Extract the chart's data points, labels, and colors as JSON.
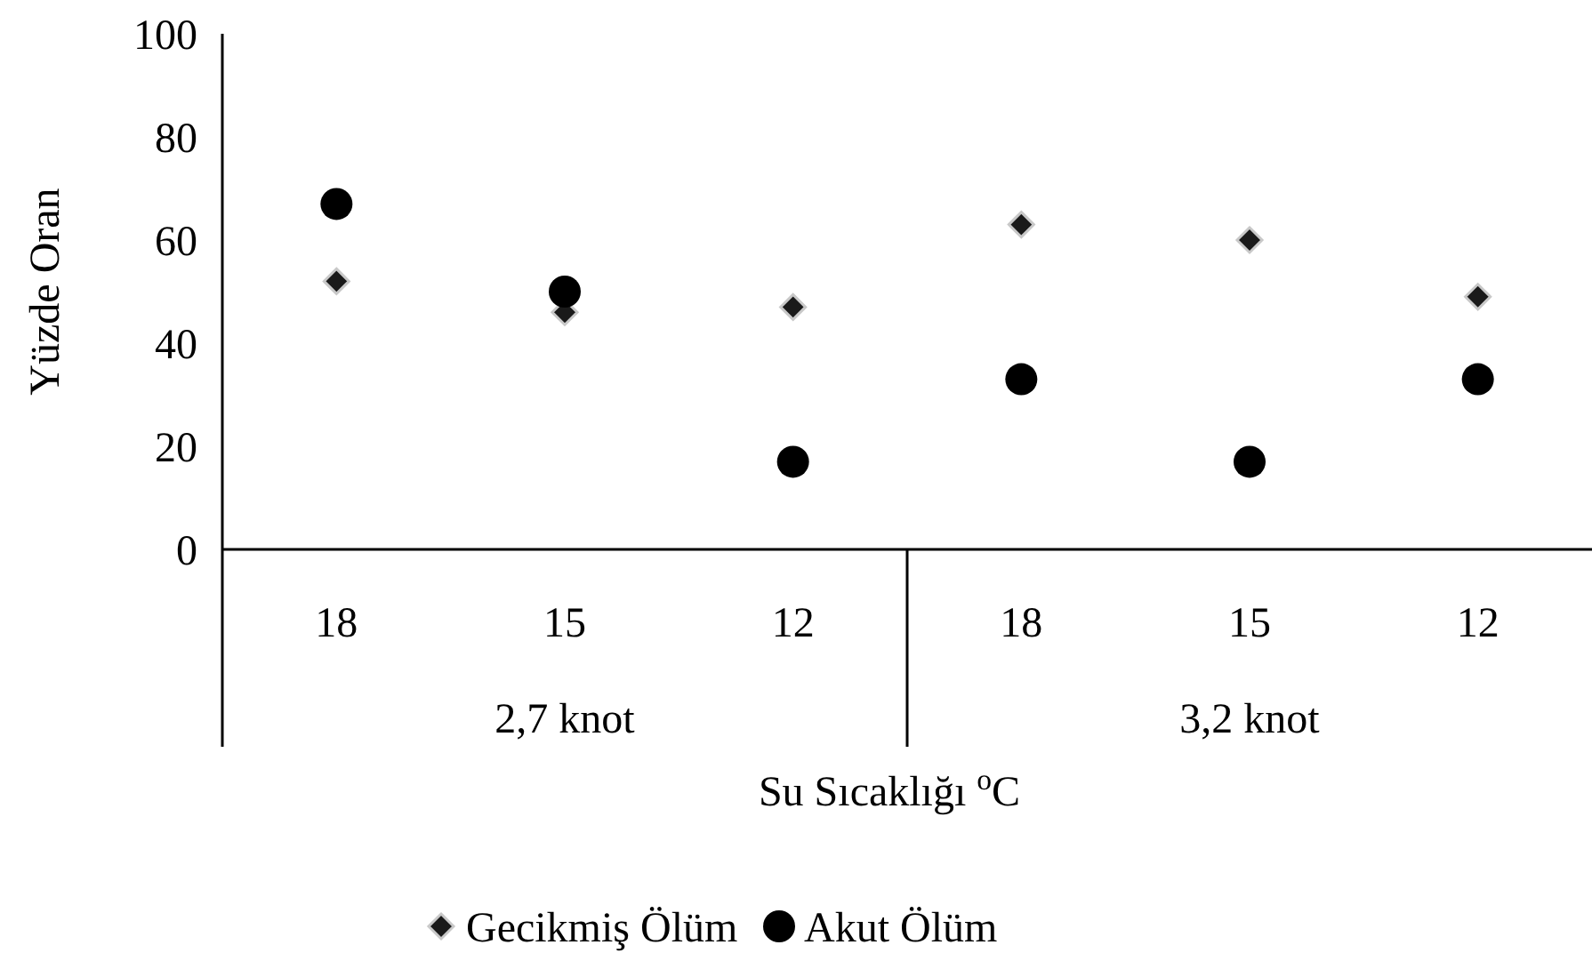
{
  "chart_data": {
    "type": "scatter",
    "ylabel": "Yüzde Oran",
    "xlabel": "Su Sıcaklığı $^{o}$C",
    "categories": [
      "18",
      "15",
      "12",
      "18",
      "15",
      "12"
    ],
    "annotations": [
      "2,7 knot",
      "3,2 knot"
    ],
    "ylim": [
      0,
      100
    ],
    "yticks": [
      0,
      20,
      40,
      60,
      80,
      100
    ],
    "grid": false,
    "legend": "bottom",
    "series": [
      {
        "name": "Gecikmiş Ölüm",
        "color": "#1a1a1a",
        "marker": "diamond",
        "values": [
          52,
          46,
          47,
          63,
          60,
          49
        ]
      },
      {
        "name": "Akut Ölüm",
        "color": "#000000",
        "marker": "circle",
        "values": [
          67,
          50,
          17,
          33,
          17,
          33
        ]
      }
    ]
  }
}
